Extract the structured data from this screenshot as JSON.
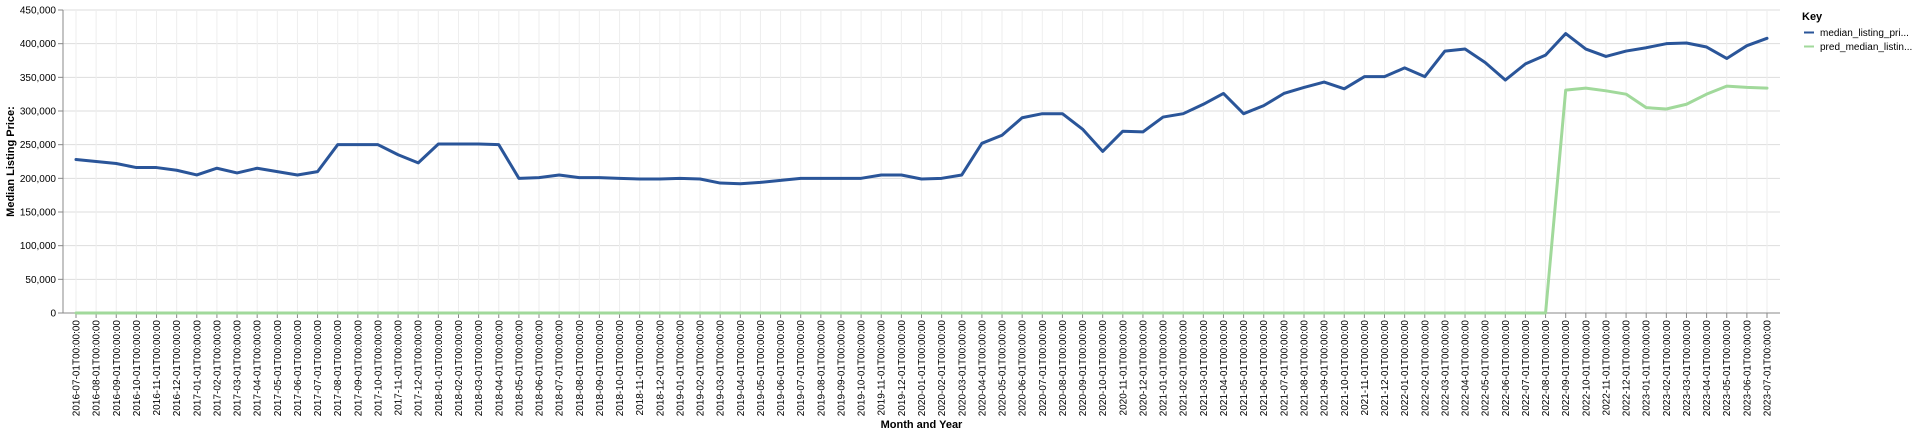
{
  "chart_data": {
    "type": "line",
    "xlabel": "Month and Year",
    "ylabel": "Median Listing Price:",
    "ylim": [
      0,
      450000
    ],
    "yticks": [
      "0",
      "50,000",
      "100,000",
      "150,000",
      "200,000",
      "250,000",
      "300,000",
      "350,000",
      "400,000",
      "450,000"
    ],
    "grid": true,
    "legend": {
      "title": "Key",
      "position": "top-right"
    },
    "x": [
      "2016-07-01T00:00:00",
      "2016-08-01T00:00:00",
      "2016-09-01T00:00:00",
      "2016-10-01T00:00:00",
      "2016-11-01T00:00:00",
      "2016-12-01T00:00:00",
      "2017-01-01T00:00:00",
      "2017-02-01T00:00:00",
      "2017-03-01T00:00:00",
      "2017-04-01T00:00:00",
      "2017-05-01T00:00:00",
      "2017-06-01T00:00:00",
      "2017-07-01T00:00:00",
      "2017-08-01T00:00:00",
      "2017-09-01T00:00:00",
      "2017-10-01T00:00:00",
      "2017-11-01T00:00:00",
      "2017-12-01T00:00:00",
      "2018-01-01T00:00:00",
      "2018-02-01T00:00:00",
      "2018-03-01T00:00:00",
      "2018-04-01T00:00:00",
      "2018-05-01T00:00:00",
      "2018-06-01T00:00:00",
      "2018-07-01T00:00:00",
      "2018-08-01T00:00:00",
      "2018-09-01T00:00:00",
      "2018-10-01T00:00:00",
      "2018-11-01T00:00:00",
      "2018-12-01T00:00:00",
      "2019-01-01T00:00:00",
      "2019-02-01T00:00:00",
      "2019-03-01T00:00:00",
      "2019-04-01T00:00:00",
      "2019-05-01T00:00:00",
      "2019-06-01T00:00:00",
      "2019-07-01T00:00:00",
      "2019-08-01T00:00:00",
      "2019-09-01T00:00:00",
      "2019-10-01T00:00:00",
      "2019-11-01T00:00:00",
      "2019-12-01T00:00:00",
      "2020-01-01T00:00:00",
      "2020-02-01T00:00:00",
      "2020-03-01T00:00:00",
      "2020-04-01T00:00:00",
      "2020-05-01T00:00:00",
      "2020-06-01T00:00:00",
      "2020-07-01T00:00:00",
      "2020-08-01T00:00:00",
      "2020-09-01T00:00:00",
      "2020-10-01T00:00:00",
      "2020-11-01T00:00:00",
      "2020-12-01T00:00:00",
      "2021-01-01T00:00:00",
      "2021-02-01T00:00:00",
      "2021-03-01T00:00:00",
      "2021-04-01T00:00:00",
      "2021-05-01T00:00:00",
      "2021-06-01T00:00:00",
      "2021-07-01T00:00:00",
      "2021-08-01T00:00:00",
      "2021-09-01T00:00:00",
      "2021-10-01T00:00:00",
      "2021-11-01T00:00:00",
      "2021-12-01T00:00:00",
      "2022-01-01T00:00:00",
      "2022-02-01T00:00:00",
      "2022-03-01T00:00:00",
      "2022-04-01T00:00:00",
      "2022-05-01T00:00:00",
      "2022-06-01T00:00:00",
      "2022-07-01T00:00:00",
      "2022-08-01T00:00:00",
      "2022-09-01T00:00:00",
      "2022-10-01T00:00:00",
      "2022-11-01T00:00:00",
      "2022-12-01T00:00:00",
      "2023-01-01T00:00:00",
      "2023-02-01T00:00:00",
      "2023-03-01T00:00:00",
      "2023-04-01T00:00:00",
      "2023-05-01T00:00:00",
      "2023-06-01T00:00:00",
      "2023-07-01T00:00:00"
    ],
    "series": [
      {
        "name": "median_listing_pri...",
        "color": "#2a5599",
        "values": [
          228000,
          225000,
          222000,
          216000,
          216000,
          212000,
          205000,
          215000,
          208000,
          215000,
          210000,
          205000,
          210000,
          250000,
          250000,
          250000,
          235000,
          223000,
          251000,
          251000,
          251000,
          250000,
          200000,
          201000,
          205000,
          201000,
          201000,
          200000,
          199000,
          199000,
          200000,
          199000,
          193000,
          192000,
          194000,
          197000,
          200000,
          200000,
          200000,
          200000,
          205000,
          205000,
          199000,
          200000,
          205000,
          252000,
          264000,
          290000,
          296000,
          296000,
          273000,
          240000,
          270000,
          269000,
          291000,
          296000,
          310000,
          326000,
          296000,
          308000,
          326000,
          335000,
          343000,
          333000,
          351000,
          351000,
          364000,
          351000,
          389000,
          392000,
          372000,
          346000,
          370000,
          383000,
          415000,
          392000,
          381000,
          389000,
          394000,
          400000,
          401000,
          395000,
          378000,
          397000,
          408000
        ]
      },
      {
        "name": "pred_median_listin...",
        "color": "#a1d99b",
        "values": [
          0,
          0,
          0,
          0,
          0,
          0,
          0,
          0,
          0,
          0,
          0,
          0,
          0,
          0,
          0,
          0,
          0,
          0,
          0,
          0,
          0,
          0,
          0,
          0,
          0,
          0,
          0,
          0,
          0,
          0,
          0,
          0,
          0,
          0,
          0,
          0,
          0,
          0,
          0,
          0,
          0,
          0,
          0,
          0,
          0,
          0,
          0,
          0,
          0,
          0,
          0,
          0,
          0,
          0,
          0,
          0,
          0,
          0,
          0,
          0,
          0,
          0,
          0,
          0,
          0,
          0,
          0,
          0,
          0,
          0,
          0,
          0,
          0,
          0,
          331000,
          334000,
          330000,
          325000,
          305000,
          303000,
          310000,
          325000,
          337000,
          335000,
          334000
        ]
      }
    ]
  }
}
